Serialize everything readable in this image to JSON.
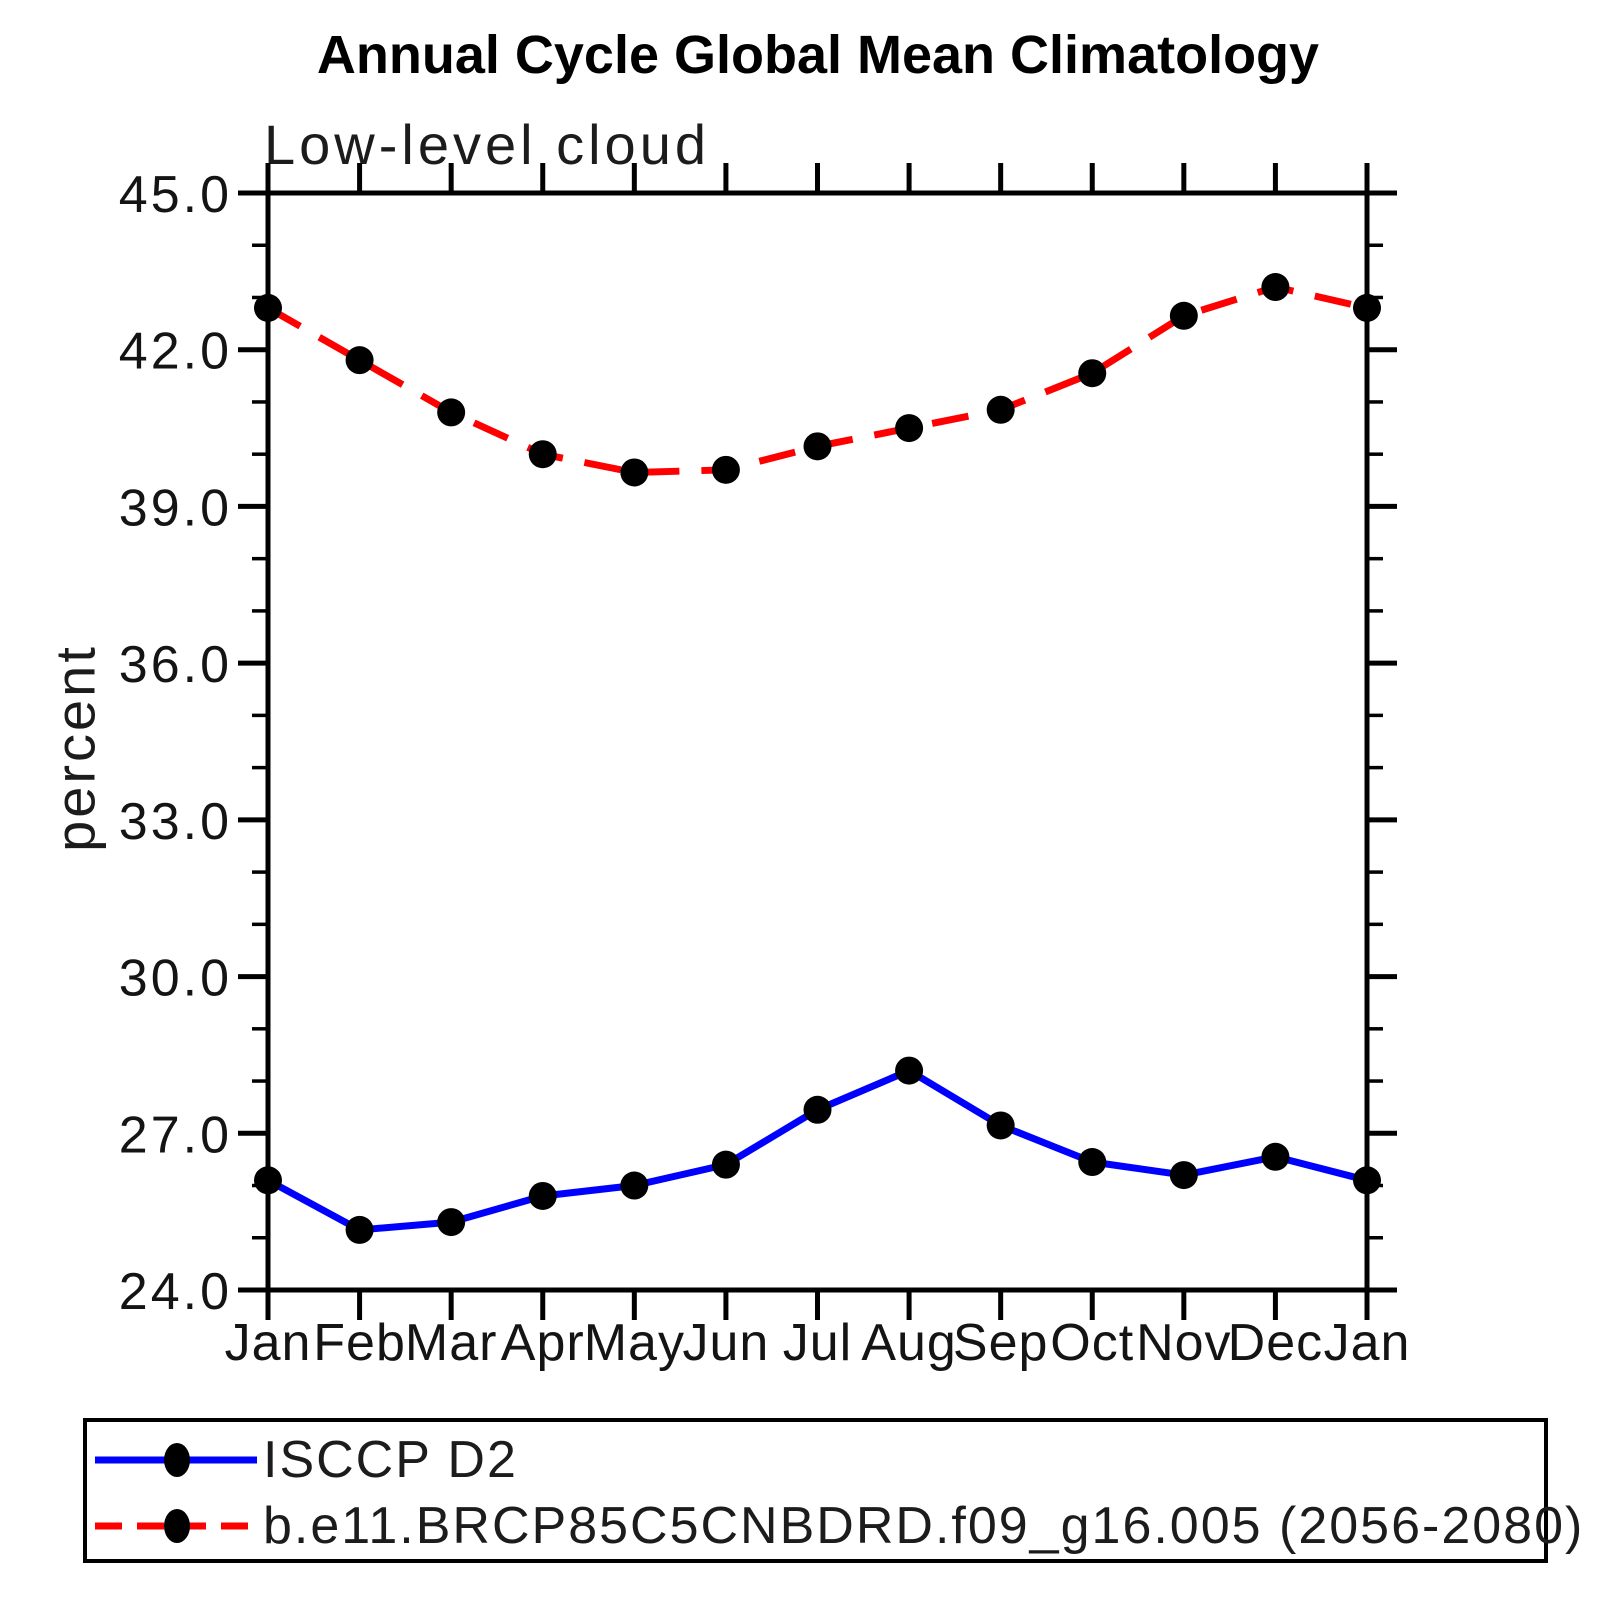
{
  "figure": {
    "title": "Annual Cycle Global Mean Climatology",
    "subtitle": "Low-level cloud",
    "y_axis_title": "percent"
  },
  "legend": {
    "position": "bottom-left",
    "items": [
      {
        "label": "ISCCP D2",
        "line_color": "#0000ff",
        "line_style": "solid",
        "marker": "filled-circle",
        "marker_color": "#000000"
      },
      {
        "label": "b.e11.BRCP85C5CNBDRD.f09_g16.005 (2056-2080)",
        "line_color": "#ff0000",
        "line_style": "dashed",
        "marker": "filled-circle",
        "marker_color": "#000000"
      }
    ]
  },
  "chart_data": {
    "type": "line",
    "title": "Annual Cycle Global Mean Climatology",
    "subtitle": "Low-level cloud",
    "xlabel": "",
    "ylabel": "percent",
    "categories": [
      "Jan",
      "Feb",
      "Mar",
      "Apr",
      "May",
      "Jun",
      "Jul",
      "Aug",
      "Sep",
      "Oct",
      "Nov",
      "Dec",
      "Jan"
    ],
    "ylim": [
      24.0,
      45.0
    ],
    "ytick_major_values": [
      24.0,
      27.0,
      30.0,
      33.0,
      36.0,
      39.0,
      42.0,
      45.0
    ],
    "ytick_major_labels": [
      "24.0",
      "27.0",
      "30.0",
      "33.0",
      "36.0",
      "39.0",
      "42.0",
      "45.0"
    ],
    "ytick_minor_step": 1.0,
    "grid": false,
    "legend_position": "bottom",
    "series": [
      {
        "name": "ISCCP D2",
        "color": "#0000ff",
        "line_style": "solid",
        "marker": "filled-circle",
        "marker_color": "#000000",
        "values": [
          26.1,
          25.15,
          25.3,
          25.8,
          26.0,
          26.4,
          27.45,
          28.2,
          27.15,
          26.45,
          26.2,
          26.55,
          26.1
        ]
      },
      {
        "name": "b.e11.BRCP85C5CNBDRD.f09_g16.005 (2056-2080)",
        "color": "#ff0000",
        "line_style": "dashed",
        "marker": "filled-circle",
        "marker_color": "#000000",
        "values": [
          42.8,
          41.8,
          40.8,
          40.0,
          39.65,
          39.7,
          40.15,
          40.5,
          40.85,
          41.55,
          42.65,
          43.2,
          42.8
        ]
      }
    ]
  }
}
